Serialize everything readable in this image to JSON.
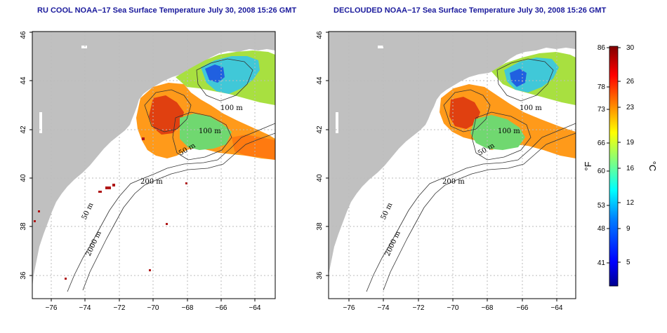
{
  "panels": [
    {
      "id": "left",
      "title": "RU COOL NOAA−17 Sea Surface Temperature July 30, 2008 15:26 GMT"
    },
    {
      "id": "right",
      "title": "DECLOUDED NOAA−17 Sea Surface Temperature July 30, 2008 15:26 GMT"
    }
  ],
  "axes": {
    "x_ticks": [
      "−76",
      "−74",
      "−72",
      "−70",
      "−68",
      "−66",
      "−64"
    ],
    "y_ticks": [
      "36",
      "38",
      "40",
      "42",
      "44",
      "46"
    ]
  },
  "contour_labels": {
    "m100a": "100 m",
    "m100b": "100 m",
    "m50": "50 m",
    "m200": "200 m",
    "m50s": "50 m",
    "m2000": "2000 m"
  },
  "colorbar": {
    "fahrenheit_ticks": [
      "86",
      "78",
      "73",
      "66",
      "60",
      "53",
      "48",
      "41"
    ],
    "celsius_ticks": [
      "30",
      "26",
      "23",
      "19",
      "16",
      "12",
      "9",
      "5"
    ],
    "f_unit": "°F",
    "c_unit": "°C",
    "colors": [
      "#00008f",
      "#0000ff",
      "#0080ff",
      "#00ffff",
      "#80ff80",
      "#ffff00",
      "#ff8000",
      "#ff0000",
      "#800000"
    ]
  },
  "legend_color_land": "#c0c0c0",
  "legend_color_grid": "#bbbbbb"
}
